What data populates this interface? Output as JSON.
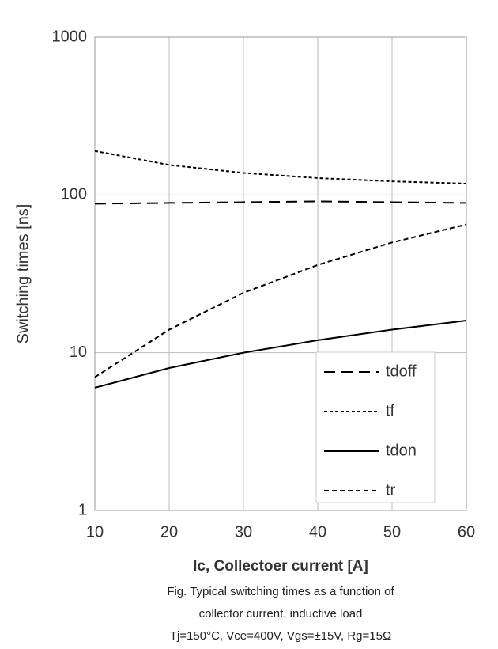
{
  "chart_data": {
    "type": "line",
    "y_label": "Switching times [ns]",
    "x_label": "Ic, Collectoer current [A]",
    "caption": [
      "Fig. Typical switching times as a function of",
      "collector current, inductive load",
      "Tj=150°C, Vce=400V, Vgs=±15V, Rg=15Ω"
    ],
    "x": [
      10,
      20,
      30,
      40,
      50,
      60
    ],
    "series": [
      {
        "name": "tdoff",
        "color": "#000000",
        "dash": "14,8",
        "values": [
          88,
          89,
          90,
          91,
          90,
          89
        ]
      },
      {
        "name": "tf",
        "color": "#000000",
        "dash": "4,3",
        "values": [
          190,
          155,
          138,
          128,
          122,
          118
        ]
      },
      {
        "name": "tdon",
        "color": "#000000",
        "dash": "none",
        "values": [
          6,
          8,
          10,
          12,
          14,
          16
        ]
      },
      {
        "name": "tr",
        "color": "#000000",
        "dash": "6,4",
        "values": [
          7,
          14,
          24,
          36,
          50,
          65
        ]
      }
    ],
    "xlim": [
      10,
      60
    ],
    "xticks": [
      10,
      20,
      30,
      40,
      50,
      60
    ],
    "ylim": [
      1,
      1000
    ],
    "yticks": [
      1,
      10,
      100,
      1000
    ],
    "log_y": true,
    "grid": true,
    "legend": "lower right"
  }
}
